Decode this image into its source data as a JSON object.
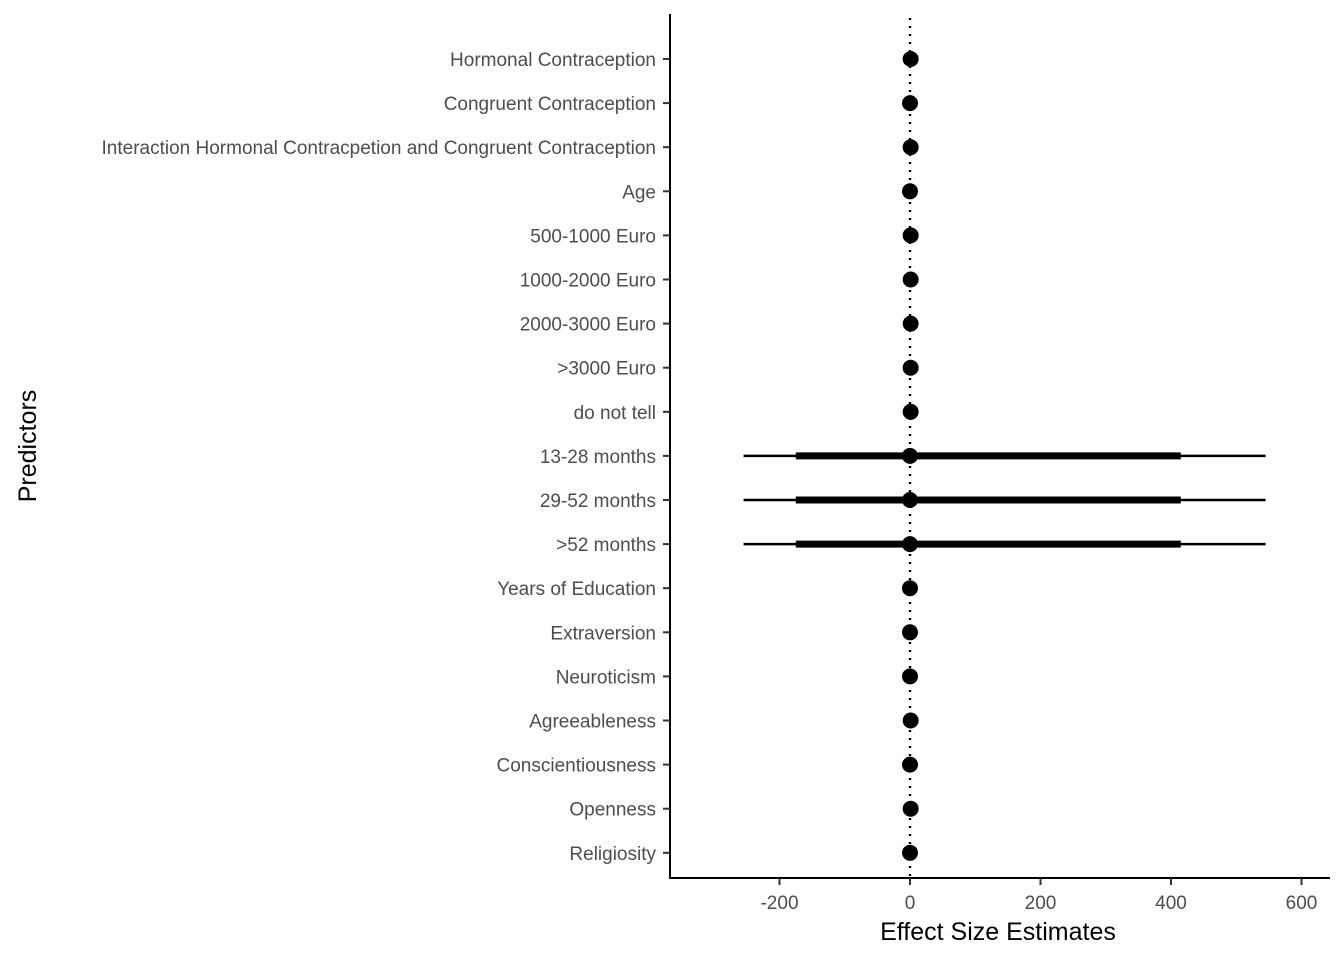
{
  "chart_data": {
    "type": "forest",
    "xlabel": "Effect Size Estimates",
    "ylabel": "Predictors",
    "xlim": [
      -365,
      640
    ],
    "xticks": [
      -200,
      0,
      200,
      400,
      600
    ],
    "xtick_labels": [
      "-200",
      "0",
      "200",
      "400",
      "600"
    ],
    "reference_line": 0,
    "grid": false,
    "legend": "none",
    "point_color": "#000000",
    "predictors": [
      {
        "label": "Hormonal Contraception",
        "estimate": 1,
        "inner": null,
        "outer": null
      },
      {
        "label": "Congruent Contraception",
        "estimate": 0,
        "inner": null,
        "outer": null
      },
      {
        "label": "Interaction Hormonal Contracpetion and Congruent Contraception",
        "estimate": 1,
        "inner": null,
        "outer": null
      },
      {
        "label": "Age",
        "estimate": 0,
        "inner": null,
        "outer": null
      },
      {
        "label": "500-1000 Euro",
        "estimate": 1,
        "inner": null,
        "outer": null
      },
      {
        "label": "1000-2000 Euro",
        "estimate": 1,
        "inner": null,
        "outer": null
      },
      {
        "label": "2000-3000 Euro",
        "estimate": 1,
        "inner": null,
        "outer": null
      },
      {
        "label": ">3000 Euro",
        "estimate": 1,
        "inner": null,
        "outer": null
      },
      {
        "label": "do not tell",
        "estimate": 1,
        "inner": null,
        "outer": null
      },
      {
        "label": "13-28 months",
        "estimate": 0,
        "inner": [
          -175,
          415
        ],
        "outer": [
          -255,
          545
        ]
      },
      {
        "label": "29-52 months",
        "estimate": 0,
        "inner": [
          -175,
          415
        ],
        "outer": [
          -255,
          545
        ]
      },
      {
        "label": ">52 months",
        "estimate": 0,
        "inner": [
          -175,
          415
        ],
        "outer": [
          -255,
          545
        ]
      },
      {
        "label": "Years of Education",
        "estimate": 0,
        "inner": null,
        "outer": null
      },
      {
        "label": "Extraversion",
        "estimate": 0,
        "inner": null,
        "outer": null
      },
      {
        "label": "Neuroticism",
        "estimate": 0,
        "inner": null,
        "outer": null
      },
      {
        "label": "Agreeableness",
        "estimate": 1,
        "inner": null,
        "outer": null
      },
      {
        "label": "Conscientiousness",
        "estimate": 0,
        "inner": null,
        "outer": null
      },
      {
        "label": "Openness",
        "estimate": 1,
        "inner": null,
        "outer": null
      },
      {
        "label": "Religiosity",
        "estimate": 0,
        "inner": null,
        "outer": null
      }
    ]
  }
}
